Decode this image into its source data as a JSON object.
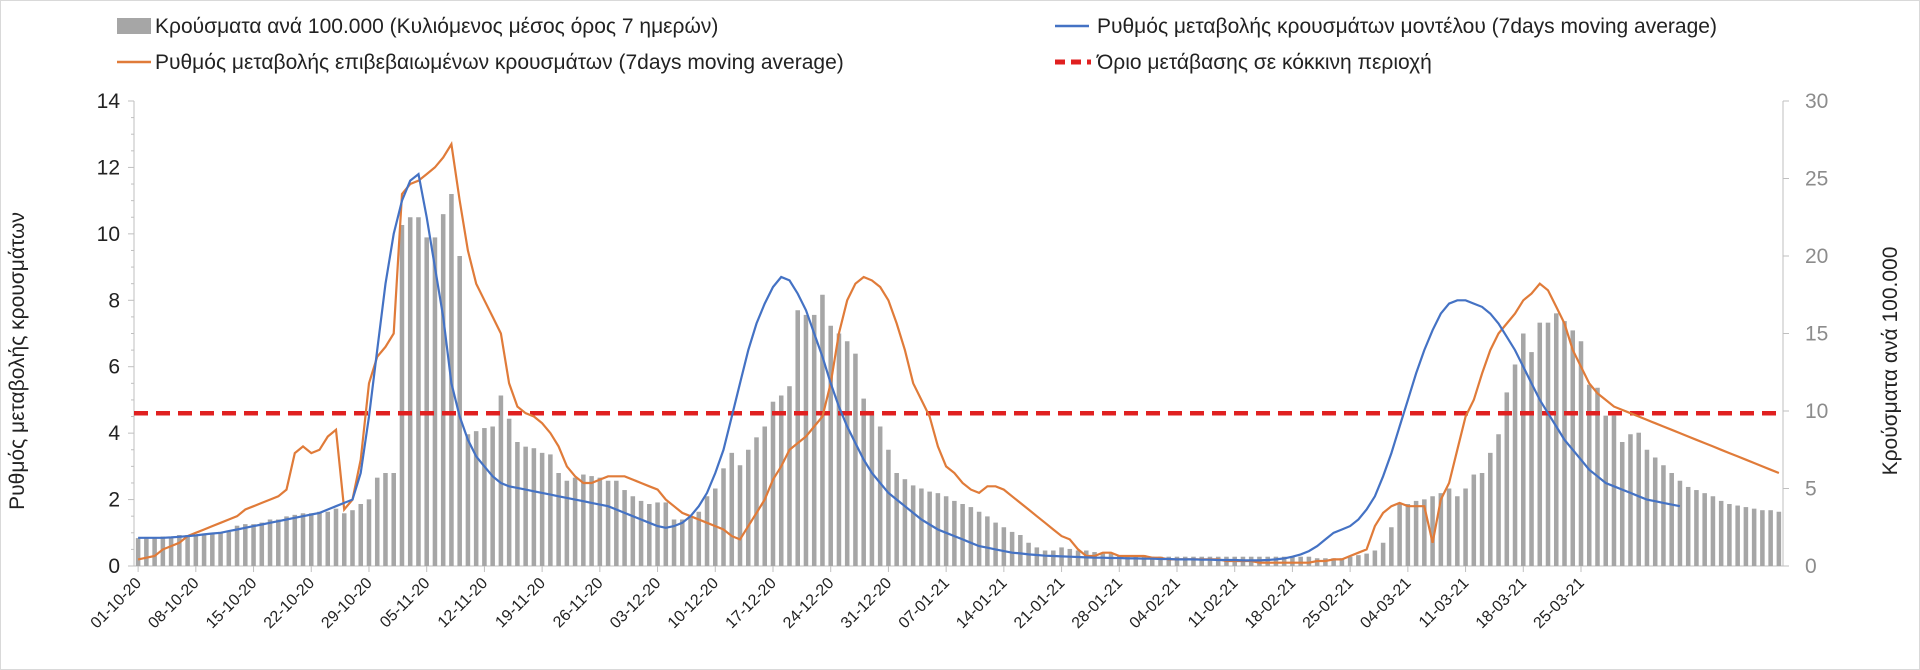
{
  "chart_data": {
    "type": "bar",
    "legend": {
      "bars": "Κρούσματα ανά 100.000 (Κυλιόμενος μέσος όρος 7 ημερών)",
      "confirmed": "Ρυθμός μεταβολής επιβεβαιωμένων κρουσμάτων (7days moving average)",
      "model": "Ρυθμός μεταβολής κρουσμάτων μοντέλου (7days moving average)",
      "threshold": "Όριο μετάβασης σε κόκκινη περιοχή"
    },
    "ylabel": "Ρυθμός μεταβολής κρουσμάτων",
    "y2label": "Κρούσματα ανά 100.000",
    "ylim": [
      0,
      14
    ],
    "y2lim": [
      0,
      30
    ],
    "yticks": [
      "0",
      "2",
      "4",
      "6",
      "8",
      "10",
      "12",
      "14"
    ],
    "y2ticks": [
      "0",
      "5",
      "10",
      "15",
      "20",
      "25",
      "30"
    ],
    "x_labels": [
      "01-10-20",
      "08-10-20",
      "15-10-20",
      "22-10-20",
      "29-10-20",
      "05-11-20",
      "12-11-20",
      "19-11-20",
      "26-11-20",
      "03-12-20",
      "10-12-20",
      "17-12-20",
      "24-12-20",
      "31-12-20",
      "07-01-21",
      "14-01-21",
      "21-01-21",
      "28-01-21",
      "04-02-21",
      "11-02-21",
      "18-02-21",
      "25-02-21",
      "04-03-21",
      "11-03-21",
      "18-03-21",
      "25-03-21"
    ],
    "threshold": 4.6,
    "bars": [
      1.8,
      1.8,
      1.8,
      1.9,
      1.9,
      2.0,
      2.0,
      2.0,
      2.1,
      2.1,
      2.2,
      2.2,
      2.6,
      2.7,
      2.7,
      2.8,
      3.0,
      3.0,
      3.2,
      3.3,
      3.4,
      3.4,
      3.5,
      3.5,
      3.7,
      3.4,
      3.6,
      4.0,
      4.3,
      5.7,
      6.0,
      6.0,
      22.0,
      22.5,
      22.5,
      21.2,
      21.2,
      22.7,
      24.0,
      20.0,
      8.5,
      8.7,
      8.9,
      9.0,
      11.0,
      9.5,
      8.0,
      7.7,
      7.6,
      7.3,
      7.2,
      6.0,
      5.5,
      5.7,
      5.9,
      5.8,
      5.7,
      5.5,
      5.5,
      4.9,
      4.5,
      4.2,
      4.0,
      4.1,
      4.1,
      3.0,
      3.0,
      3.2,
      3.5,
      4.5,
      5.0,
      6.3,
      7.3,
      6.5,
      7.5,
      8.3,
      9.0,
      10.6,
      11.0,
      11.6,
      16.5,
      16.2,
      16.2,
      17.5,
      15.5,
      15.0,
      14.5,
      13.7,
      10.8,
      10.0,
      9.0,
      7.5,
      6.0,
      5.6,
      5.2,
      5.0,
      4.8,
      4.7,
      4.5,
      4.2,
      4.0,
      3.8,
      3.5,
      3.2,
      2.8,
      2.5,
      2.2,
      2.0,
      1.5,
      1.2,
      1.0,
      1.0,
      1.2,
      1.1,
      1.0,
      1.0,
      0.9,
      0.8,
      0.8,
      0.7,
      0.7,
      0.7,
      0.7,
      0.6,
      0.6,
      0.6,
      0.6,
      0.6,
      0.6,
      0.6,
      0.6,
      0.6,
      0.6,
      0.6,
      0.6,
      0.6,
      0.6,
      0.6,
      0.6,
      0.6,
      0.6,
      0.6,
      0.6,
      0.5,
      0.5,
      0.5,
      0.5,
      0.6,
      0.7,
      0.8,
      1.0,
      1.5,
      2.5,
      4.0,
      4.0,
      4.2,
      4.3,
      4.5,
      4.7,
      5.0,
      4.5,
      5.0,
      5.9,
      6.0,
      7.3,
      8.5,
      11.2,
      13.0,
      15.0,
      13.8,
      15.7,
      15.7,
      16.3,
      15.8,
      15.2,
      14.5,
      11.7,
      11.5,
      9.7,
      9.7,
      8.0,
      8.5,
      8.6,
      7.5,
      7.0,
      6.5,
      6.0,
      5.5,
      5.1,
      4.9,
      4.7,
      4.5,
      4.2,
      4.0,
      3.9,
      3.8,
      3.7,
      3.6,
      3.6,
      3.5
    ],
    "confirmed_rate": [
      0.2,
      0.25,
      0.3,
      0.5,
      0.6,
      0.7,
      0.9,
      1.0,
      1.1,
      1.2,
      1.3,
      1.4,
      1.5,
      1.7,
      1.8,
      1.9,
      2.0,
      2.1,
      2.3,
      3.4,
      3.6,
      3.4,
      3.5,
      3.9,
      4.1,
      1.7,
      2.0,
      3.2,
      5.5,
      6.3,
      6.6,
      7.0,
      11.2,
      11.5,
      11.6,
      11.8,
      12.0,
      12.3,
      12.7,
      11.0,
      9.5,
      8.5,
      8.0,
      7.5,
      7.0,
      5.5,
      4.8,
      4.6,
      4.5,
      4.3,
      4.0,
      3.6,
      3.0,
      2.7,
      2.5,
      2.5,
      2.6,
      2.7,
      2.7,
      2.7,
      2.6,
      2.5,
      2.4,
      2.3,
      2.0,
      1.8,
      1.6,
      1.5,
      1.4,
      1.3,
      1.2,
      1.1,
      0.9,
      0.8,
      1.2,
      1.6,
      2.0,
      2.6,
      3.0,
      3.5,
      3.7,
      3.9,
      4.2,
      4.5,
      5.5,
      7.0,
      8.0,
      8.5,
      8.7,
      8.6,
      8.4,
      8.0,
      7.3,
      6.5,
      5.5,
      5.0,
      4.5,
      3.6,
      3.0,
      2.8,
      2.5,
      2.3,
      2.2,
      2.4,
      2.4,
      2.3,
      2.1,
      1.9,
      1.7,
      1.5,
      1.3,
      1.1,
      0.9,
      0.8,
      0.5,
      0.3,
      0.3,
      0.4,
      0.4,
      0.3,
      0.3,
      0.3,
      0.3,
      0.25,
      0.25,
      0.2,
      0.2,
      0.2,
      0.2,
      0.2,
      0.2,
      0.2,
      0.15,
      0.15,
      0.15,
      0.15,
      0.1,
      0.1,
      0.1,
      0.1,
      0.1,
      0.1,
      0.1,
      0.15,
      0.15,
      0.2,
      0.2,
      0.3,
      0.4,
      0.5,
      1.2,
      1.6,
      1.8,
      1.9,
      1.8,
      1.8,
      1.8,
      0.7,
      2.0,
      2.5,
      3.5,
      4.5,
      5.0,
      5.8,
      6.5,
      7.0,
      7.3,
      7.6,
      8.0,
      8.2,
      8.5,
      8.3,
      7.8,
      7.3,
      6.5,
      6.0,
      5.5,
      5.2,
      5.0,
      4.8,
      4.7,
      4.6,
      4.5,
      4.4,
      4.3,
      4.2,
      4.1,
      4.0,
      3.9,
      3.8,
      3.7,
      3.6,
      3.5,
      3.4,
      3.3,
      3.2,
      3.1,
      3.0,
      2.9,
      2.8
    ],
    "model_rate": [
      0.85,
      0.85,
      0.85,
      0.85,
      0.86,
      0.88,
      0.9,
      0.92,
      0.95,
      0.98,
      1.0,
      1.05,
      1.1,
      1.15,
      1.2,
      1.25,
      1.3,
      1.35,
      1.4,
      1.45,
      1.5,
      1.55,
      1.6,
      1.7,
      1.8,
      1.9,
      2.0,
      2.8,
      4.5,
      6.5,
      8.5,
      10.0,
      11.0,
      11.6,
      11.8,
      10.5,
      9.0,
      7.5,
      5.5,
      4.5,
      3.8,
      3.3,
      3.0,
      2.7,
      2.5,
      2.4,
      2.35,
      2.3,
      2.25,
      2.2,
      2.15,
      2.1,
      2.05,
      2.0,
      1.95,
      1.9,
      1.85,
      1.8,
      1.7,
      1.6,
      1.5,
      1.4,
      1.3,
      1.2,
      1.15,
      1.2,
      1.3,
      1.5,
      1.8,
      2.2,
      2.8,
      3.5,
      4.5,
      5.5,
      6.5,
      7.3,
      7.9,
      8.4,
      8.7,
      8.6,
      8.2,
      7.7,
      7.0,
      6.3,
      5.5,
      4.8,
      4.2,
      3.7,
      3.2,
      2.8,
      2.5,
      2.2,
      2.0,
      1.8,
      1.6,
      1.4,
      1.25,
      1.1,
      1.0,
      0.9,
      0.8,
      0.7,
      0.6,
      0.55,
      0.5,
      0.45,
      0.4,
      0.38,
      0.35,
      0.33,
      0.31,
      0.3,
      0.29,
      0.28,
      0.27,
      0.26,
      0.25,
      0.25,
      0.24,
      0.24,
      0.23,
      0.23,
      0.22,
      0.22,
      0.21,
      0.21,
      0.2,
      0.2,
      0.2,
      0.19,
      0.19,
      0.18,
      0.18,
      0.18,
      0.17,
      0.17,
      0.17,
      0.18,
      0.2,
      0.23,
      0.28,
      0.35,
      0.45,
      0.6,
      0.8,
      1.0,
      1.1,
      1.2,
      1.4,
      1.7,
      2.1,
      2.7,
      3.4,
      4.2,
      5.0,
      5.8,
      6.5,
      7.1,
      7.6,
      7.9,
      8.0,
      8.0,
      7.9,
      7.8,
      7.6,
      7.3,
      6.9,
      6.5,
      6.0,
      5.5,
      5.0,
      4.6,
      4.2,
      3.8,
      3.5,
      3.2,
      2.9,
      2.7,
      2.5,
      2.4,
      2.3,
      2.2,
      2.1,
      2.0,
      1.95,
      1.9,
      1.85,
      1.8
    ]
  }
}
